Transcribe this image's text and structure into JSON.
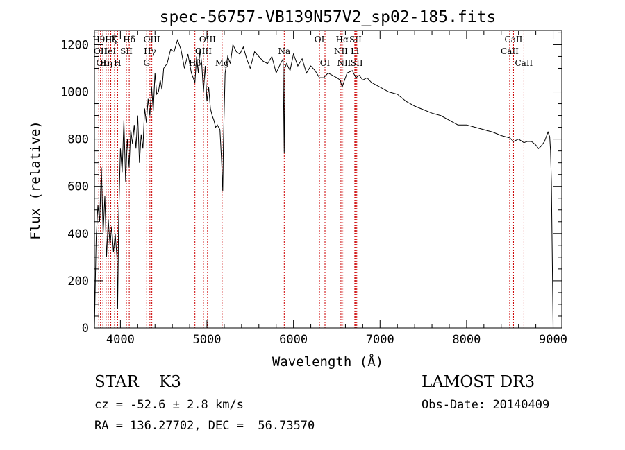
{
  "chart_data": {
    "type": "line",
    "title": "spec-56757-VB139N57V2_sp02-185.fits",
    "xlabel": "Wavelength (Å)",
    "ylabel": "Flux (relative)",
    "xlim": [
      3700,
      9100
    ],
    "ylim": [
      0,
      1260
    ],
    "xticks": [
      4000,
      5000,
      6000,
      7000,
      8000,
      9000
    ],
    "yticks": [
      0,
      200,
      400,
      600,
      800,
      1000,
      1200
    ],
    "x_tick_labels": [
      "4000",
      "5000",
      "6000",
      "7000",
      "8000",
      "9000"
    ],
    "y_tick_labels": [
      "0",
      "200",
      "400",
      "600",
      "800",
      "1000",
      "1200"
    ],
    "grid": false,
    "line_color": "#000000",
    "marker_color": "#cc0000",
    "series": [
      {
        "name": "flux",
        "x": [
          3700,
          3720,
          3740,
          3760,
          3780,
          3800,
          3820,
          3840,
          3860,
          3880,
          3900,
          3920,
          3940,
          3960,
          3968,
          3980,
          4000,
          4020,
          4040,
          4060,
          4080,
          4100,
          4120,
          4140,
          4160,
          4180,
          4200,
          4220,
          4240,
          4260,
          4280,
          4300,
          4320,
          4340,
          4360,
          4380,
          4400,
          4420,
          4440,
          4460,
          4480,
          4500,
          4540,
          4580,
          4620,
          4660,
          4700,
          4740,
          4780,
          4820,
          4861,
          4880,
          4900,
          4920,
          4940,
          4960,
          4980,
          5000,
          5020,
          5040,
          5060,
          5080,
          5100,
          5120,
          5150,
          5170,
          5183,
          5190,
          5210,
          5240,
          5270,
          5300,
          5340,
          5380,
          5420,
          5460,
          5500,
          5550,
          5600,
          5650,
          5700,
          5750,
          5800,
          5850,
          5880,
          5893,
          5900,
          5920,
          5960,
          6000,
          6050,
          6100,
          6150,
          6200,
          6250,
          6300,
          6350,
          6400,
          6450,
          6500,
          6540,
          6563,
          6590,
          6620,
          6680,
          6720,
          6760,
          6800,
          6850,
          6900,
          7000,
          7100,
          7200,
          7300,
          7400,
          7500,
          7600,
          7700,
          7800,
          7900,
          8000,
          8100,
          8200,
          8300,
          8400,
          8500,
          8542,
          8600,
          8662,
          8700,
          8750,
          8800,
          8830,
          8860,
          8900,
          8940,
          8960,
          8970,
          8980,
          8990,
          9000
        ],
        "values": [
          0,
          380,
          520,
          450,
          680,
          400,
          560,
          300,
          460,
          350,
          430,
          320,
          400,
          300,
          80,
          460,
          760,
          660,
          880,
          620,
          800,
          680,
          840,
          780,
          860,
          760,
          900,
          700,
          820,
          760,
          930,
          870,
          970,
          900,
          1020,
          920,
          1080,
          990,
          1000,
          1050,
          1010,
          1100,
          1120,
          1180,
          1170,
          1220,
          1180,
          1100,
          1160,
          1080,
          1040,
          1150,
          1080,
          1180,
          1120,
          1000,
          1110,
          960,
          1020,
          930,
          900,
          880,
          850,
          860,
          840,
          700,
          580,
          780,
          1080,
          1150,
          1120,
          1200,
          1170,
          1160,
          1190,
          1140,
          1100,
          1170,
          1150,
          1130,
          1120,
          1150,
          1080,
          1120,
          1140,
          740,
          1100,
          1120,
          1090,
          1160,
          1110,
          1140,
          1080,
          1110,
          1090,
          1060,
          1060,
          1080,
          1070,
          1060,
          1050,
          1020,
          1050,
          1080,
          1090,
          1060,
          1070,
          1050,
          1060,
          1040,
          1020,
          1000,
          990,
          960,
          940,
          925,
          910,
          900,
          880,
          860,
          860,
          850,
          840,
          830,
          815,
          805,
          790,
          800,
          785,
          790,
          790,
          775,
          760,
          770,
          790,
          830,
          810,
          750,
          620,
          300,
          0
        ]
      }
    ],
    "lines": [
      {
        "w": 3750,
        "l1": "Hθ"
      },
      {
        "w": 3770,
        "l2": "OII"
      },
      {
        "w": 3798,
        "l3": "OII"
      },
      {
        "w": 3835,
        "l3": "Hη"
      },
      {
        "w": 3860,
        "l2": "HeI"
      },
      {
        "w": 3889,
        "l1": "Hζ"
      },
      {
        "w": 3933,
        "l1": "K"
      },
      {
        "w": 3968,
        "l3": "H"
      },
      {
        "w": 4069,
        "l2": "SII"
      },
      {
        "w": 4102,
        "l1": "Hδ"
      },
      {
        "w": 4304,
        "l3": "G"
      },
      {
        "w": 4341,
        "l2": "Hγ"
      },
      {
        "w": 4363,
        "l1": "OIII"
      },
      {
        "w": 4861,
        "l3": "Hβ"
      },
      {
        "w": 4959,
        "l2": "OIII"
      },
      {
        "w": 5007,
        "l1": "OIII"
      },
      {
        "w": 5175,
        "l3": "Mg"
      },
      {
        "w": 5893,
        "l4": "Na"
      },
      {
        "w": 6300,
        "l1": "OI"
      },
      {
        "w": 6364,
        "l3": "OI"
      },
      {
        "w": 6548,
        "l2": "NII"
      },
      {
        "w": 6563,
        "l1": "Hα"
      },
      {
        "w": 6584,
        "l3": "NII"
      },
      {
        "w": 6708,
        "l2": "Li"
      },
      {
        "w": 6717,
        "l1": "SII"
      },
      {
        "w": 6731,
        "l3": "SII"
      },
      {
        "w": 8498,
        "l2": "CaII"
      },
      {
        "w": 8542,
        "l1": "CaII"
      },
      {
        "w": 8662,
        "l3": "CaII"
      }
    ]
  },
  "info": {
    "class_line": "STAR    K3",
    "cz_line": "cz = -52.6 ± 2.8 km/s",
    "radec_line": "RA = 136.27702, DEC =  56.73570",
    "survey": "LAMOST DR3",
    "obs_date": "Obs-Date: 20140409"
  }
}
